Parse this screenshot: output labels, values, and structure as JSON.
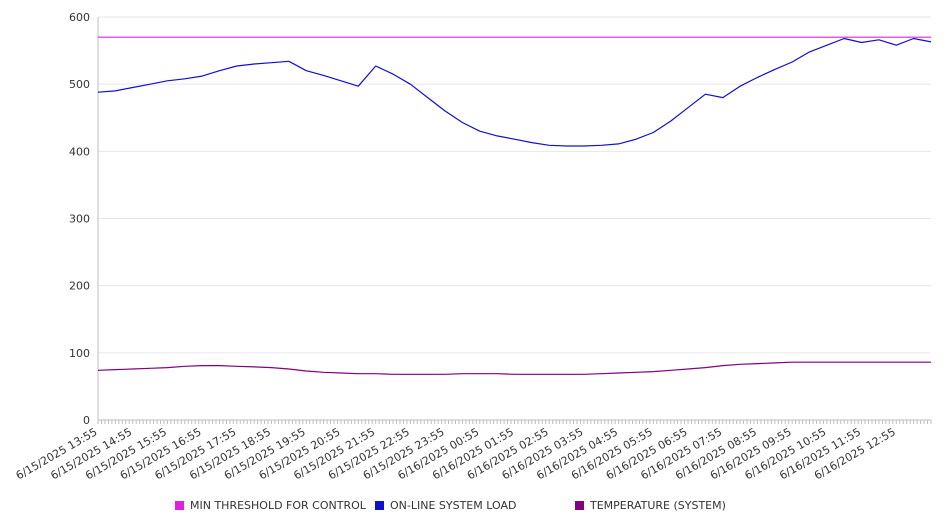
{
  "chart_data": {
    "type": "line",
    "title": "",
    "xlabel": "",
    "ylabel": "",
    "ylim": [
      0,
      600
    ],
    "y_ticks": [
      0,
      100,
      200,
      300,
      400,
      500,
      600
    ],
    "grid": true,
    "legend_position": "bottom",
    "x_tick_labels": [
      "6/15/2025 13:55",
      "6/15/2025 14:55",
      "6/15/2025 15:55",
      "6/15/2025 16:55",
      "6/15/2025 17:55",
      "6/15/2025 18:55",
      "6/15/2025 19:55",
      "6/15/2025 20:55",
      "6/15/2025 21:55",
      "6/15/2025 22:55",
      "6/15/2025 23:55",
      "6/16/2025 00:55",
      "6/16/2025 01:55",
      "6/16/2025 02:55",
      "6/16/2025 03:55",
      "6/16/2025 04:55",
      "6/16/2025 05:55",
      "6/16/2025 06:55",
      "6/16/2025 07:55",
      "6/16/2025 08:55",
      "6/16/2025 09:55",
      "6/16/2025 10:55",
      "6/16/2025 11:55",
      "6/16/2025 12:55"
    ],
    "x_hours": [
      0,
      0.5,
      1,
      1.5,
      2,
      2.5,
      3,
      3.5,
      4,
      4.5,
      5,
      5.5,
      6,
      6.5,
      7,
      7.5,
      8,
      8.5,
      9,
      9.5,
      10,
      10.5,
      11,
      11.5,
      12,
      12.5,
      13,
      13.5,
      14,
      14.5,
      15,
      15.5,
      16,
      16.5,
      17,
      17.5,
      18,
      18.5,
      19,
      19.5,
      20,
      20.5,
      21,
      21.5,
      22,
      22.5,
      23,
      23.5,
      24
    ],
    "series": [
      {
        "name": "MIN THRESHOLD FOR CONTROL",
        "color": "#e020e0",
        "values": [
          570,
          570,
          570,
          570,
          570,
          570,
          570,
          570,
          570,
          570,
          570,
          570,
          570,
          570,
          570,
          570,
          570,
          570,
          570,
          570,
          570,
          570,
          570,
          570,
          570,
          570,
          570,
          570,
          570,
          570,
          570,
          570,
          570,
          570,
          570,
          570,
          570,
          570,
          570,
          570,
          570,
          570,
          570,
          570,
          570,
          570,
          570,
          570,
          570
        ]
      },
      {
        "name": "ON-LINE SYSTEM LOAD",
        "color": "#1010d0",
        "values": [
          488,
          490,
          495,
          500,
          505,
          508,
          512,
          520,
          527,
          530,
          532,
          534,
          520,
          513,
          505,
          497,
          527,
          515,
          500,
          480,
          460,
          443,
          430,
          423,
          418,
          413,
          409,
          408,
          408,
          409,
          411,
          418,
          428,
          445,
          465,
          485,
          480,
          497,
          510,
          522,
          533,
          548,
          558,
          568,
          562,
          566,
          558,
          568,
          563
        ]
      },
      {
        "name": "TEMPERATURE (SYSTEM)",
        "color": "#800080",
        "values": [
          74,
          75,
          76,
          77,
          78,
          80,
          81,
          81,
          80,
          79,
          78,
          76,
          73,
          71,
          70,
          69,
          69,
          68,
          68,
          68,
          68,
          69,
          69,
          69,
          68,
          68,
          68,
          68,
          68,
          69,
          70,
          71,
          72,
          74,
          76,
          78,
          81,
          83,
          84,
          85,
          86,
          86,
          86,
          86,
          86,
          86,
          86,
          86,
          86
        ]
      }
    ]
  }
}
